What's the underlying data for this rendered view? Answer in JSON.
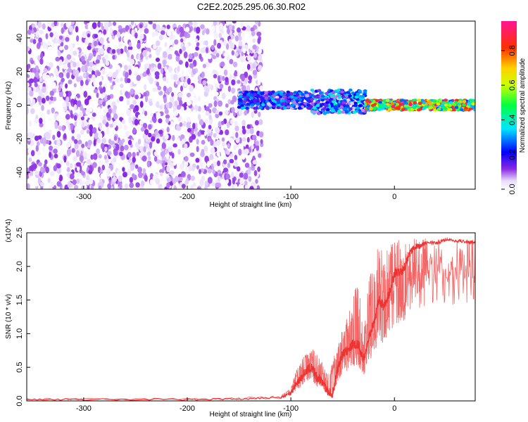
{
  "title": "C2E2.2025.295.06.30.R02",
  "colors": {
    "snr_line": "#ee3333",
    "axis": "#000000",
    "background": "#ffffff"
  },
  "chart_data": [
    {
      "type": "heatmap",
      "name": "spectrogram",
      "xlabel": "Height of straight line (km)",
      "ylabel": "Frequency (Hz)",
      "xlim": [
        -355,
        78
      ],
      "ylim": [
        -50,
        50
      ],
      "xticks": [
        -300,
        -200,
        -100,
        0
      ],
      "yticks": [
        -40,
        -20,
        0,
        20,
        40
      ],
      "colorbar": {
        "label": "Normalized spectral amplitude",
        "range": [
          0,
          0.97
        ],
        "ticks": [
          0.0,
          0.2,
          0.4,
          0.6,
          0.8
        ],
        "tick_labels": [
          "0.0",
          "0.2",
          "0.4",
          "0.6",
          "0.8"
        ]
      },
      "regions": [
        {
          "x_range": [
            -355,
            -128
          ],
          "freq_range": [
            -50,
            50
          ],
          "amplitude_range": [
            0.0,
            0.12
          ],
          "description": "noise"
        },
        {
          "x_range": [
            -150,
            -80
          ],
          "freq_center": 3,
          "freq_width": 10,
          "amplitude_range": [
            0.05,
            0.35
          ]
        },
        {
          "x_range": [
            -80,
            -28
          ],
          "freq_center": 2,
          "freq_width": 14,
          "amplitude_range": [
            0.05,
            0.4
          ]
        },
        {
          "x_range": [
            -28,
            78
          ],
          "freq_center": 0,
          "freq_width": 6,
          "amplitude_range": [
            0.25,
            0.97
          ]
        }
      ]
    },
    {
      "type": "line",
      "name": "snr",
      "xlabel": "Height of straight line (km)",
      "ylabel": "SNR (10 * v/v)",
      "y_multiplier": "(x10^4)",
      "xlim": [
        -355,
        78
      ],
      "ylim": [
        0,
        2.5
      ],
      "xticks": [
        -300,
        -200,
        -100,
        0
      ],
      "yticks": [
        0.0,
        0.5,
        1.0,
        1.5,
        2.0,
        2.5
      ],
      "ytick_labels": [
        "0.0",
        "0.5",
        "1.0",
        "1.5",
        "2.0",
        "2.5"
      ],
      "series": [
        {
          "name": "SNR",
          "x": [
            -355,
            -300,
            -200,
            -150,
            -110,
            -100,
            -95,
            -90,
            -85,
            -80,
            -75,
            -70,
            -65,
            -60,
            -55,
            -50,
            -45,
            -40,
            -35,
            -30,
            -25,
            -20,
            -15,
            -10,
            -5,
            0,
            5,
            10,
            15,
            20,
            25,
            30,
            40,
            50,
            60,
            70,
            78
          ],
          "y": [
            0.02,
            0.02,
            0.02,
            0.03,
            0.05,
            0.12,
            0.25,
            0.35,
            0.45,
            0.5,
            0.35,
            0.3,
            0.15,
            0.1,
            0.45,
            0.7,
            0.75,
            0.85,
            0.85,
            0.6,
            0.95,
            1.15,
            1.5,
            1.4,
            1.6,
            1.9,
            1.9,
            2.0,
            2.2,
            2.3,
            2.3,
            2.35,
            2.35,
            2.4,
            2.38,
            2.37,
            2.35
          ],
          "envelope_max": [
            0.04,
            0.04,
            0.04,
            0.05,
            0.08,
            0.2,
            0.45,
            0.62,
            0.75,
            0.8,
            0.7,
            0.6,
            0.4,
            0.55,
            0.9,
            1.05,
            1.35,
            1.55,
            1.85,
            1.0,
            1.75,
            2.15,
            2.35,
            2.25,
            2.35,
            2.4,
            2.4,
            2.35,
            2.4,
            2.45,
            2.45,
            2.45,
            2.45,
            2.45,
            2.45,
            2.45,
            2.45
          ]
        }
      ]
    }
  ]
}
